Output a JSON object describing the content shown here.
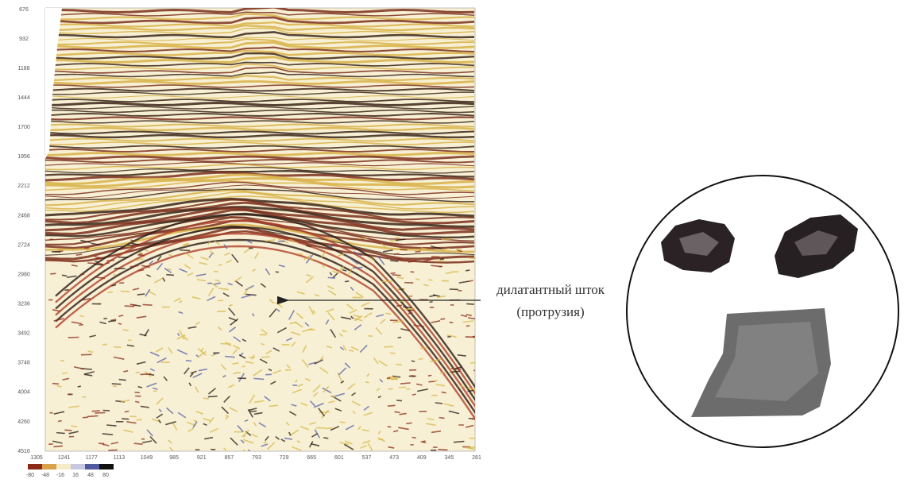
{
  "section": {
    "depth_labels": [
      "676",
      "932",
      "1188",
      "1444",
      "1700",
      "1956",
      "2212",
      "2468",
      "2724",
      "2980",
      "3236",
      "3492",
      "3748",
      "4004",
      "4260",
      "4516"
    ],
    "trace_labels": [
      "1305",
      "1241",
      "1177",
      "1113",
      "1049",
      "985",
      "921",
      "857",
      "793",
      "729",
      "665",
      "601",
      "537",
      "473",
      "409",
      "345",
      "281"
    ],
    "colorbar_labels": [
      "-80",
      "-48",
      "-16",
      "16",
      "48",
      "80"
    ]
  },
  "annotation": {
    "line1": "дилатантный шток",
    "line2": "(протрузия)"
  }
}
